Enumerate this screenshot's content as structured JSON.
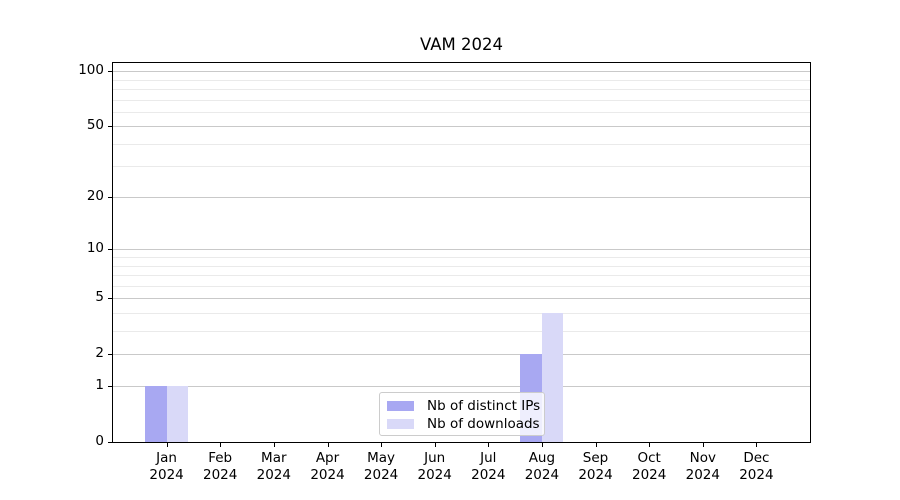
{
  "chart_data": {
    "type": "bar",
    "title": "VAM 2024",
    "categories": [
      "Jan",
      "Feb",
      "Mar",
      "Apr",
      "May",
      "Jun",
      "Jul",
      "Aug",
      "Sep",
      "Oct",
      "Nov",
      "Dec"
    ],
    "category_year": "2024",
    "series": [
      {
        "name": "Nb of distinct IPs",
        "color": "#a8a8f2",
        "values": [
          1,
          0,
          0,
          0,
          0,
          0,
          0,
          2,
          0,
          0,
          0,
          0
        ]
      },
      {
        "name": "Nb of downloads",
        "color": "#d9d9f8",
        "values": [
          1,
          0,
          0,
          0,
          0,
          0,
          0,
          4,
          0,
          0,
          0,
          0
        ]
      }
    ],
    "xlabel": "",
    "ylabel": "",
    "yscale": "log1p",
    "ylim": [
      0,
      111
    ],
    "yticks_major": [
      0,
      1,
      2,
      5,
      10,
      20,
      50,
      100
    ],
    "yticks_minor": [
      3,
      4,
      6,
      7,
      8,
      9,
      30,
      40,
      60,
      70,
      80,
      90
    ],
    "grid": "horizontal",
    "legend_position": "lower-center-inside",
    "colors": {
      "grid_major": "#c9c9c9",
      "grid_minor": "#eaeaea",
      "spine": "#000000",
      "text": "#000000",
      "legend_border": "#cccccc",
      "background": "#ffffff"
    }
  }
}
